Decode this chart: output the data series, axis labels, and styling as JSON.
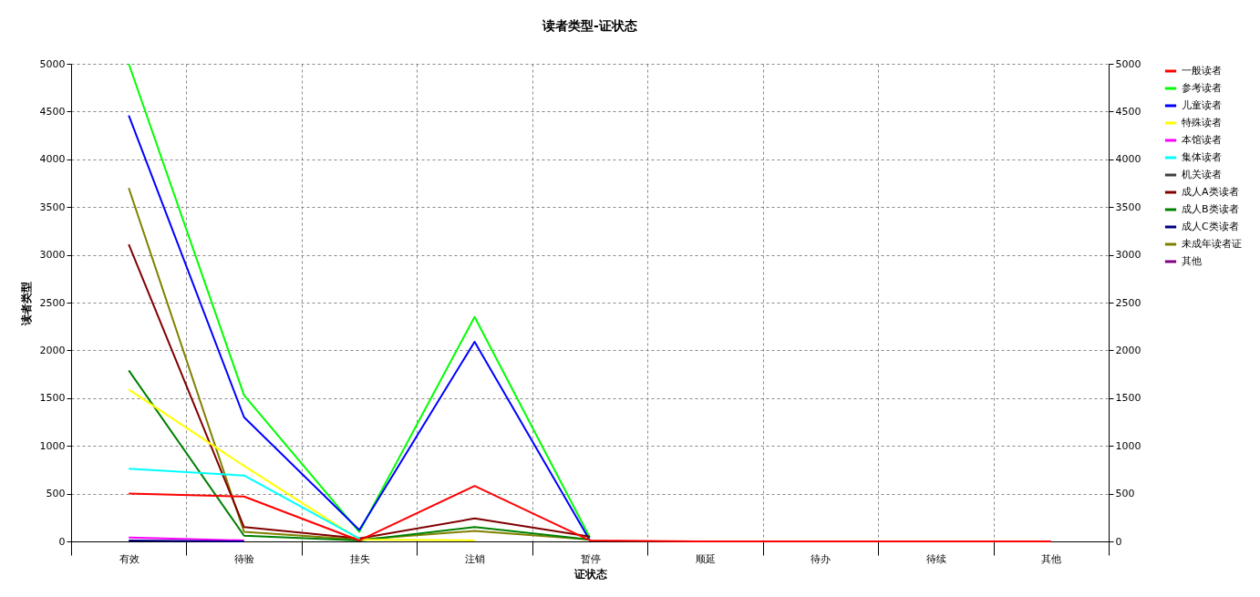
{
  "chart_data": {
    "type": "line",
    "title": "读者类型-证状态",
    "xlabel": "证状态",
    "ylabel": "读者类型",
    "categories": [
      "有效",
      "待验",
      "挂失",
      "注销",
      "暂停",
      "顺延",
      "待办",
      "待续",
      "其他"
    ],
    "series": [
      {
        "name": "一般读者",
        "color": "#ff0000",
        "values": [
          500,
          470,
          10,
          580,
          10,
          0,
          0,
          0,
          0
        ]
      },
      {
        "name": "参考读者",
        "color": "#00ff00",
        "values": [
          5000,
          1530,
          100,
          2350,
          40,
          null,
          null,
          null,
          null
        ]
      },
      {
        "name": "儿童读者",
        "color": "#0000ff",
        "values": [
          4460,
          1300,
          120,
          2090,
          10,
          null,
          null,
          null,
          null
        ]
      },
      {
        "name": "特殊读者",
        "color": "#ffff00",
        "values": [
          1590,
          790,
          20,
          10,
          null,
          null,
          null,
          null,
          null
        ]
      },
      {
        "name": "本馆读者",
        "color": "#ff00ff",
        "values": [
          40,
          10,
          null,
          null,
          null,
          null,
          null,
          null,
          null
        ]
      },
      {
        "name": "集体读者",
        "color": "#00ffff",
        "values": [
          760,
          690,
          30,
          null,
          null,
          null,
          null,
          null,
          null
        ]
      },
      {
        "name": "机关读者",
        "color": "#404040",
        "values": [
          null,
          null,
          null,
          null,
          null,
          null,
          null,
          null,
          null
        ]
      },
      {
        "name": "成人A类读者",
        "color": "#800000",
        "values": [
          3110,
          150,
          30,
          240,
          50,
          null,
          null,
          null,
          null
        ]
      },
      {
        "name": "成人B类读者",
        "color": "#008000",
        "values": [
          1790,
          60,
          10,
          150,
          20,
          null,
          null,
          null,
          null
        ]
      },
      {
        "name": "成人C类读者",
        "color": "#000080",
        "values": [
          10,
          0,
          null,
          null,
          null,
          null,
          null,
          null,
          null
        ]
      },
      {
        "name": "未成年读者证",
        "color": "#808000",
        "values": [
          3700,
          100,
          20,
          110,
          20,
          null,
          null,
          null,
          null
        ]
      },
      {
        "name": "其他",
        "color": "#800080",
        "values": [
          null,
          null,
          null,
          null,
          null,
          null,
          null,
          null,
          null
        ]
      }
    ],
    "ylim": [
      0,
      5000
    ],
    "yticks": [
      0,
      500,
      1000,
      1500,
      2000,
      2500,
      3000,
      3500,
      4000,
      4500,
      5000
    ],
    "y2lim": [
      0,
      5000
    ],
    "y2ticks": [
      0,
      500,
      1000,
      1500,
      2000,
      2500,
      3000,
      3500,
      4000,
      4500,
      5000
    ],
    "grid": true,
    "legend": "right",
    "marker": "none",
    "line_style": "solid"
  }
}
